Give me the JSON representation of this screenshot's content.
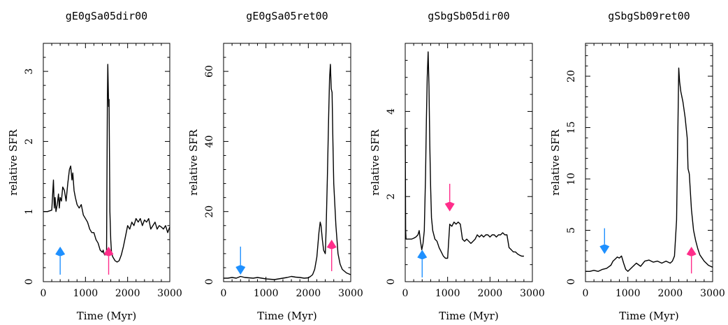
{
  "colors": {
    "blue_arrow": "#1e90ff",
    "pink_arrow": "#ff2d8a",
    "line": "#000000"
  },
  "chart_data": [
    {
      "type": "line",
      "title": "gE0gSa05dir00",
      "xlabel": "Time (Myr)",
      "ylabel": "relative SFR",
      "xlim": [
        0,
        3000
      ],
      "ylim": [
        0,
        3.4
      ],
      "xticks": [
        0,
        1000,
        2000,
        3000
      ],
      "xtick_labels": [
        "0",
        "1000",
        "2000",
        "3000"
      ],
      "yticks": [
        0,
        1,
        2,
        3
      ],
      "ytick_labels": [
        "0",
        "1",
        "2",
        "3"
      ],
      "arrows": [
        {
          "color": "blue",
          "direction": "up",
          "x": 400,
          "y_base": 0.1,
          "y_tip": 0.5
        },
        {
          "color": "pink",
          "direction": "up",
          "x": 1550,
          "y_base": 0.1,
          "y_tip": 0.5
        }
      ],
      "series": [
        {
          "x": [
            0,
            100,
            200,
            240,
            260,
            280,
            300,
            330,
            360,
            380,
            400,
            430,
            460,
            500,
            540,
            580,
            620,
            650,
            680,
            700,
            730,
            760,
            800,
            850,
            900,
            950,
            1000,
            1050,
            1100,
            1150,
            1200,
            1250,
            1300,
            1350,
            1400,
            1420,
            1440,
            1460,
            1480,
            1500,
            1510,
            1520,
            1530,
            1540,
            1550,
            1560,
            1570,
            1580,
            1600,
            1620,
            1650,
            1700,
            1750,
            1800,
            1850,
            1900,
            1950,
            2000,
            2050,
            2100,
            2150,
            2200,
            2250,
            2300,
            2350,
            2400,
            2450,
            2500,
            2550,
            2600,
            2650,
            2700,
            2750,
            2800,
            2850,
            2900,
            2950,
            3000
          ],
          "y": [
            1.0,
            1.0,
            1.02,
            1.45,
            1.05,
            1.2,
            1.0,
            1.1,
            1.25,
            1.05,
            1.2,
            1.15,
            1.35,
            1.3,
            1.15,
            1.4,
            1.6,
            1.65,
            1.45,
            1.55,
            1.3,
            1.2,
            1.1,
            1.05,
            1.1,
            0.95,
            0.9,
            0.85,
            0.75,
            0.7,
            0.7,
            0.6,
            0.55,
            0.45,
            0.42,
            0.45,
            0.4,
            0.38,
            0.4,
            0.38,
            1.5,
            2.6,
            3.1,
            2.8,
            2.5,
            2.6,
            1.8,
            1.0,
            0.6,
            0.4,
            0.35,
            0.3,
            0.28,
            0.3,
            0.38,
            0.5,
            0.65,
            0.8,
            0.75,
            0.85,
            0.8,
            0.9,
            0.85,
            0.9,
            0.8,
            0.88,
            0.85,
            0.9,
            0.75,
            0.8,
            0.85,
            0.75,
            0.8,
            0.78,
            0.75,
            0.8,
            0.7,
            0.78
          ]
        }
      ]
    },
    {
      "type": "line",
      "title": "gE0gSa05ret00",
      "xlabel": "Time (Myr)",
      "ylabel": "relative SFR",
      "xlim": [
        0,
        3000
      ],
      "ylim": [
        0,
        68
      ],
      "xticks": [
        0,
        1000,
        2000,
        3000
      ],
      "xtick_labels": [
        "0",
        "1000",
        "2000",
        "3000"
      ],
      "yticks": [
        0,
        20,
        40,
        60
      ],
      "ytick_labels": [
        "0",
        "20",
        "40",
        "60"
      ],
      "arrows": [
        {
          "color": "blue",
          "direction": "down",
          "x": 400,
          "y_base": 10,
          "y_tip": 2
        },
        {
          "color": "pink",
          "direction": "up",
          "x": 2550,
          "y_base": 3,
          "y_tip": 12
        }
      ],
      "series": [
        {
          "x": [
            0,
            100,
            200,
            300,
            400,
            500,
            600,
            700,
            800,
            900,
            1000,
            1100,
            1200,
            1300,
            1400,
            1500,
            1600,
            1700,
            1800,
            1900,
            2000,
            2050,
            2100,
            2150,
            2200,
            2250,
            2280,
            2300,
            2330,
            2360,
            2400,
            2420,
            2450,
            2480,
            2500,
            2520,
            2540,
            2560,
            2580,
            2600,
            2650,
            2700,
            2750,
            2800,
            2900,
            3000
          ],
          "y": [
            1.0,
            1.0,
            1.2,
            1.0,
            1.5,
            1.2,
            1.1,
            1.0,
            1.2,
            1.0,
            0.8,
            0.7,
            0.6,
            0.8,
            1.0,
            1.2,
            1.5,
            1.3,
            1.2,
            1.0,
            1.1,
            1.5,
            2.0,
            3.5,
            7,
            14,
            17,
            16,
            12,
            9,
            8,
            15,
            30,
            48,
            58,
            62,
            55,
            54,
            40,
            28,
            16,
            8,
            5,
            3.5,
            2.5,
            2.0
          ]
        }
      ]
    },
    {
      "type": "line",
      "title": "gSbgSb05dir00",
      "xlabel": "Time (Myr)",
      "ylabel": "relative SFR",
      "xlim": [
        0,
        3000
      ],
      "ylim": [
        0,
        5.6
      ],
      "xticks": [
        0,
        1000,
        2000,
        3000
      ],
      "xtick_labels": [
        "0",
        "1000",
        "2000",
        "3000"
      ],
      "yticks": [
        0,
        2,
        4
      ],
      "ytick_labels": [
        "0",
        "2",
        "4"
      ],
      "arrows": [
        {
          "color": "blue",
          "direction": "up",
          "x": 400,
          "y_base": 0.1,
          "y_tip": 0.75
        },
        {
          "color": "pink",
          "direction": "down",
          "x": 1050,
          "y_base": 2.3,
          "y_tip": 1.65
        }
      ],
      "series": [
        {
          "x": [
            0,
            10,
            20,
            50,
            100,
            150,
            200,
            250,
            300,
            330,
            360,
            390,
            420,
            450,
            480,
            500,
            520,
            540,
            560,
            580,
            600,
            620,
            650,
            700,
            750,
            800,
            850,
            900,
            950,
            1000,
            1050,
            1100,
            1150,
            1200,
            1250,
            1300,
            1350,
            1400,
            1450,
            1500,
            1550,
            1600,
            1650,
            1700,
            1750,
            1800,
            1850,
            1900,
            1950,
            2000,
            2050,
            2100,
            2150,
            2200,
            2250,
            2300,
            2350,
            2400,
            2450,
            2500,
            2550,
            2600,
            2650,
            2700,
            2750,
            2800
          ],
          "y": [
            3.6,
            1.2,
            1.0,
            1.0,
            1.0,
            1.0,
            1.02,
            1.05,
            1.1,
            1.2,
            0.95,
            0.75,
            0.9,
            1.2,
            2.5,
            3.8,
            4.8,
            5.4,
            4.6,
            3.2,
            2.2,
            1.5,
            1.2,
            1.0,
            0.95,
            0.8,
            0.7,
            0.6,
            0.55,
            0.55,
            1.35,
            1.3,
            1.4,
            1.35,
            1.4,
            1.35,
            1.0,
            0.95,
            1.0,
            0.95,
            0.9,
            0.95,
            1.0,
            1.1,
            1.05,
            1.1,
            1.05,
            1.1,
            1.1,
            1.05,
            1.1,
            1.1,
            1.05,
            1.1,
            1.1,
            1.15,
            1.1,
            1.1,
            0.8,
            0.75,
            0.7,
            0.7,
            0.65,
            0.62,
            0.6,
            0.6
          ]
        }
      ]
    },
    {
      "type": "line",
      "title": "gSbgSb09ret00",
      "xlabel": "Time (Myr)",
      "ylabel": "relative SFR",
      "xlim": [
        0,
        3000
      ],
      "ylim": [
        0,
        23.2
      ],
      "xticks": [
        0,
        1000,
        2000,
        3000
      ],
      "xtick_labels": [
        "0",
        "1000",
        "2000",
        "3000"
      ],
      "yticks": [
        0,
        5,
        10,
        15,
        20
      ],
      "ytick_labels": [
        "0",
        "5",
        "10",
        "15",
        "20"
      ],
      "arrows": [
        {
          "color": "blue",
          "direction": "down",
          "x": 450,
          "y_base": 5.2,
          "y_tip": 2.7
        },
        {
          "color": "pink",
          "direction": "up",
          "x": 2500,
          "y_base": 0.8,
          "y_tip": 3.4
        }
      ],
      "series": [
        {
          "x": [
            0,
            100,
            200,
            300,
            400,
            500,
            600,
            650,
            700,
            750,
            800,
            850,
            900,
            950,
            1000,
            1100,
            1200,
            1300,
            1400,
            1500,
            1600,
            1700,
            1800,
            1900,
            2000,
            2050,
            2100,
            2150,
            2180,
            2200,
            2220,
            2250,
            2300,
            2350,
            2400,
            2420,
            2450,
            2500,
            2550,
            2600,
            2650,
            2700,
            2800,
            2900,
            3000
          ],
          "y": [
            1.0,
            1.0,
            1.1,
            1.0,
            1.2,
            1.3,
            1.6,
            2.0,
            2.2,
            2.4,
            2.3,
            2.5,
            1.8,
            1.2,
            1.0,
            1.4,
            1.8,
            1.5,
            2.0,
            2.1,
            1.9,
            2.0,
            1.8,
            2.0,
            1.8,
            2.0,
            2.5,
            6,
            15,
            20.8,
            19.5,
            18.5,
            17.5,
            16,
            14,
            11,
            10.5,
            7,
            5,
            4,
            3.2,
            2.6,
            2.0,
            1.6,
            1.4
          ]
        }
      ]
    }
  ]
}
